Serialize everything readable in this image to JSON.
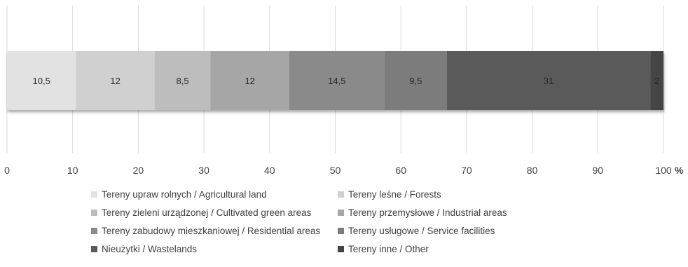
{
  "chart_data": {
    "type": "bar",
    "orientation": "horizontal",
    "stacked": true,
    "percent_stacked": true,
    "title": "",
    "xlabel": "",
    "ylabel": "",
    "xlim": [
      0,
      100
    ],
    "x_ticks": [
      "0",
      "10",
      "20",
      "30",
      "40",
      "50",
      "60",
      "70",
      "80",
      "90",
      "100"
    ],
    "x_unit": "%",
    "grid": "vertical",
    "legend_position": "bottom",
    "series": [
      {
        "name": "Tereny upraw rolnych / Agricultural land",
        "value": 10.5,
        "label": "10,5",
        "color": "#e2e2e2"
      },
      {
        "name": "Tereny leśne / Forests",
        "value": 12,
        "label": "12",
        "color": "#d0d0d0"
      },
      {
        "name": "Tereny zieleni urządzonej / Cultivated green areas",
        "value": 8.5,
        "label": "8,5",
        "color": "#bdbdbd"
      },
      {
        "name": "Tereny przemysłowe / Industrial areas",
        "value": 12,
        "label": "12",
        "color": "#a6a6a6"
      },
      {
        "name": "Tereny zabudowy mieszkaniowej / Residential areas",
        "value": 14.5,
        "label": "14,5",
        "color": "#8a8a8a"
      },
      {
        "name": "Tereny usługowe / Service facilities",
        "value": 9.5,
        "label": "9,5",
        "color": "#7b7b7b"
      },
      {
        "name": "Nieużytki / Wastelands",
        "value": 31,
        "label": "31",
        "color": "#5a5a5a"
      },
      {
        "name": "Tereny inne / Other",
        "value": 2,
        "label": "2",
        "color": "#444444"
      }
    ]
  }
}
